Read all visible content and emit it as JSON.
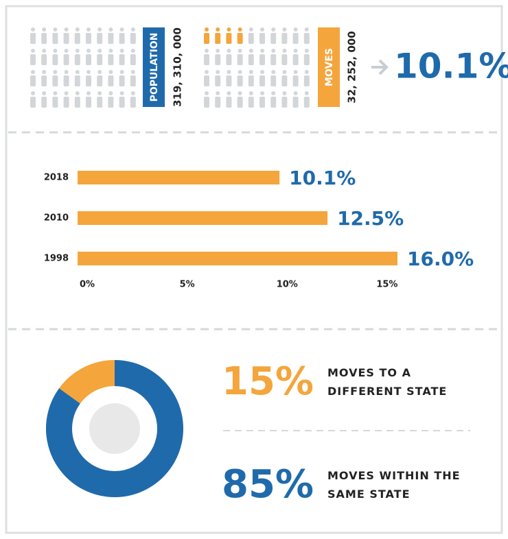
{
  "summary": {
    "population_label": "POPULATION",
    "population": "319, 310, 000",
    "moves_label": "MOVES",
    "moves": "32, 252, 000",
    "rate": "10.1%"
  },
  "chart_data": [
    {
      "type": "bar",
      "categories": [
        "2018",
        "2010",
        "1998"
      ],
      "values": [
        10.1,
        12.5,
        16.0
      ],
      "value_labels": [
        "10.1%",
        "12.5%",
        "16.0%"
      ],
      "color": "#f4a53c",
      "label_color": "#1f6aab",
      "xlim": [
        0,
        16
      ],
      "xticks": [
        {
          "value": 0,
          "label": "0%"
        },
        {
          "value": 5,
          "label": "5%"
        },
        {
          "value": 10,
          "label": "10%"
        },
        {
          "value": 15,
          "label": "15%"
        }
      ]
    },
    {
      "type": "donut",
      "categories": [
        "MOVES TO A DIFFERENT STATE",
        "MOVES WITHIN THE SAME STATE"
      ],
      "values": [
        15,
        85
      ],
      "value_labels": [
        "15%",
        "85%"
      ],
      "colors": [
        "#f4a53c",
        "#1f6aab"
      ]
    }
  ]
}
